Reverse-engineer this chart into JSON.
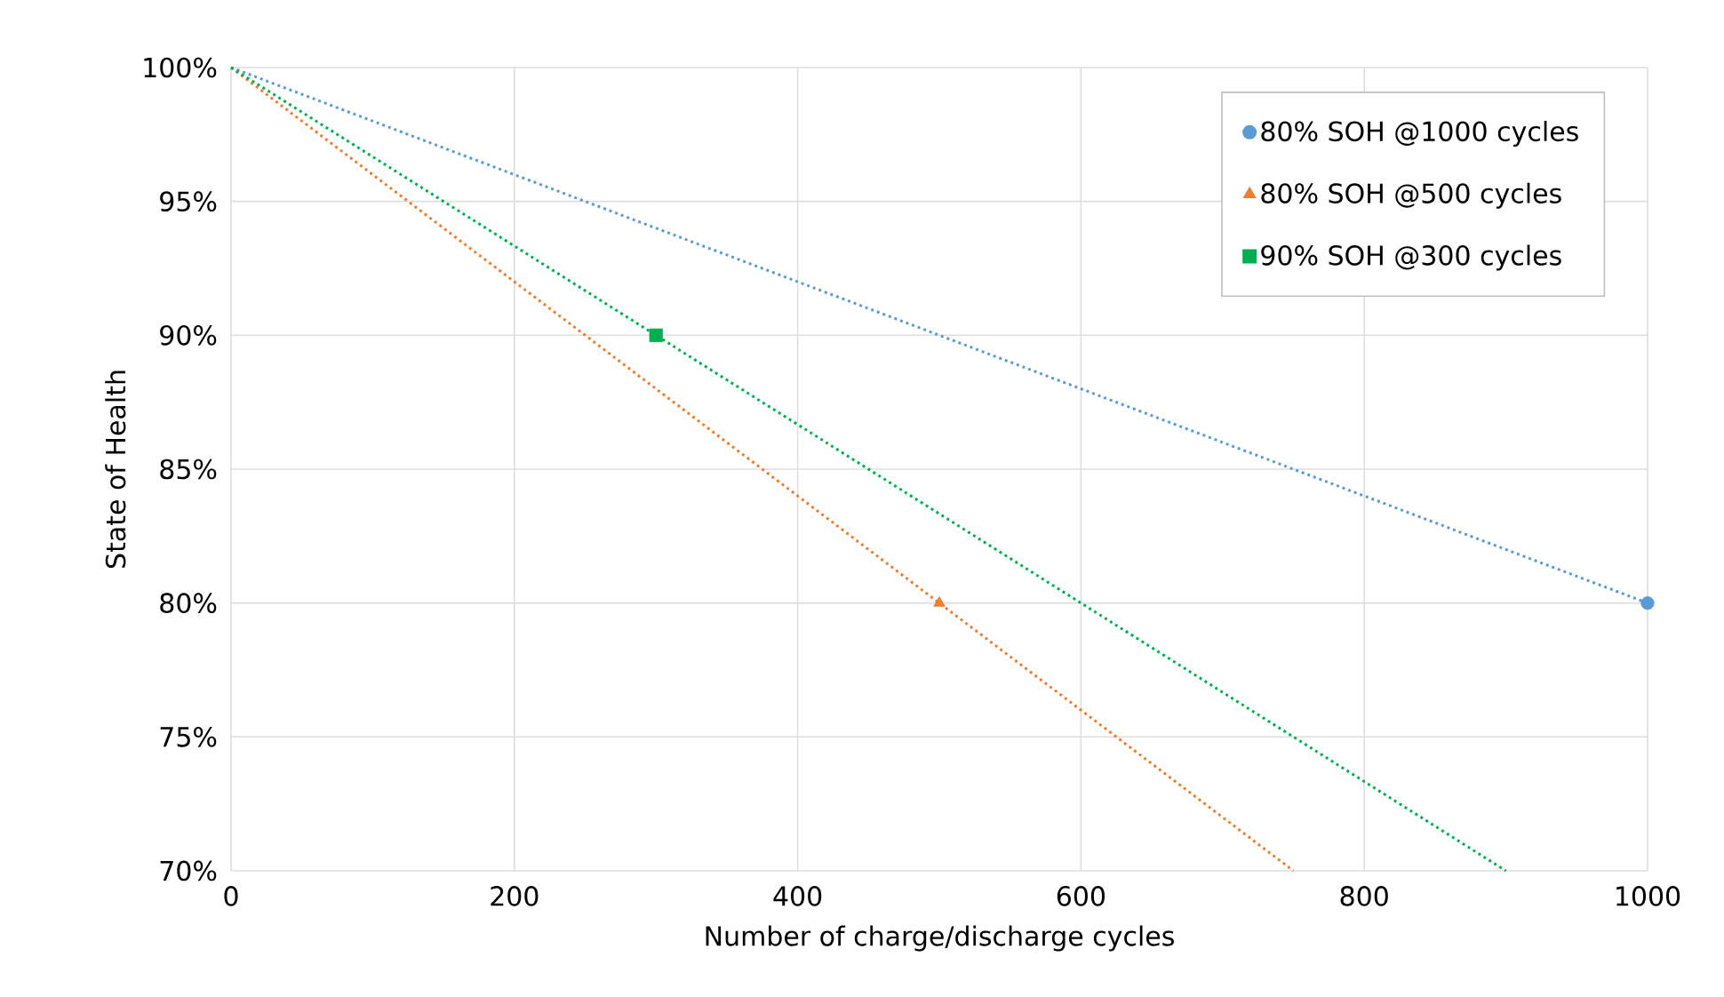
{
  "chart_data": {
    "type": "scatter",
    "xlabel": "Number of charge/discharge cycles",
    "ylabel": "State of Health",
    "xlim": [
      0,
      1000
    ],
    "xticks": [
      0,
      200,
      400,
      600,
      800,
      1000
    ],
    "ylim": [
      70,
      100
    ],
    "yticks": [
      {
        "value": 70,
        "label": "70%"
      },
      {
        "value": 75,
        "label": "75%"
      },
      {
        "value": 80,
        "label": "80%"
      },
      {
        "value": 85,
        "label": "85%"
      },
      {
        "value": 90,
        "label": "90%"
      },
      {
        "value": 95,
        "label": "95%"
      },
      {
        "value": 100,
        "label": "100%"
      }
    ],
    "grid": true,
    "legend": "top right",
    "series": [
      {
        "name": "80% SOH @1000 cycles",
        "marker": "circle",
        "color": "#5b9bd5",
        "x": [
          1000
        ],
        "values": [
          80
        ]
      },
      {
        "name": "80% SOH @500 cycles",
        "marker": "triangle",
        "color": "#ed7d31",
        "x": [
          500
        ],
        "values": [
          80
        ]
      },
      {
        "name": "90% SOH @300 cycles",
        "marker": "square",
        "color": "#00b050",
        "x": [
          300
        ],
        "values": [
          90
        ]
      },
      {
        "type": "line",
        "line_style": "dotted",
        "color": "#5b9bd5",
        "x": [
          0,
          1000
        ],
        "values": [
          100,
          80
        ]
      },
      {
        "type": "line",
        "line_style": "dotted",
        "color": "#ed7d31",
        "x": [
          0,
          750
        ],
        "values": [
          100,
          70
        ]
      },
      {
        "type": "line",
        "line_style": "dotted",
        "color": "#00b050",
        "x": [
          0,
          900
        ],
        "values": [
          100,
          70
        ]
      }
    ]
  }
}
